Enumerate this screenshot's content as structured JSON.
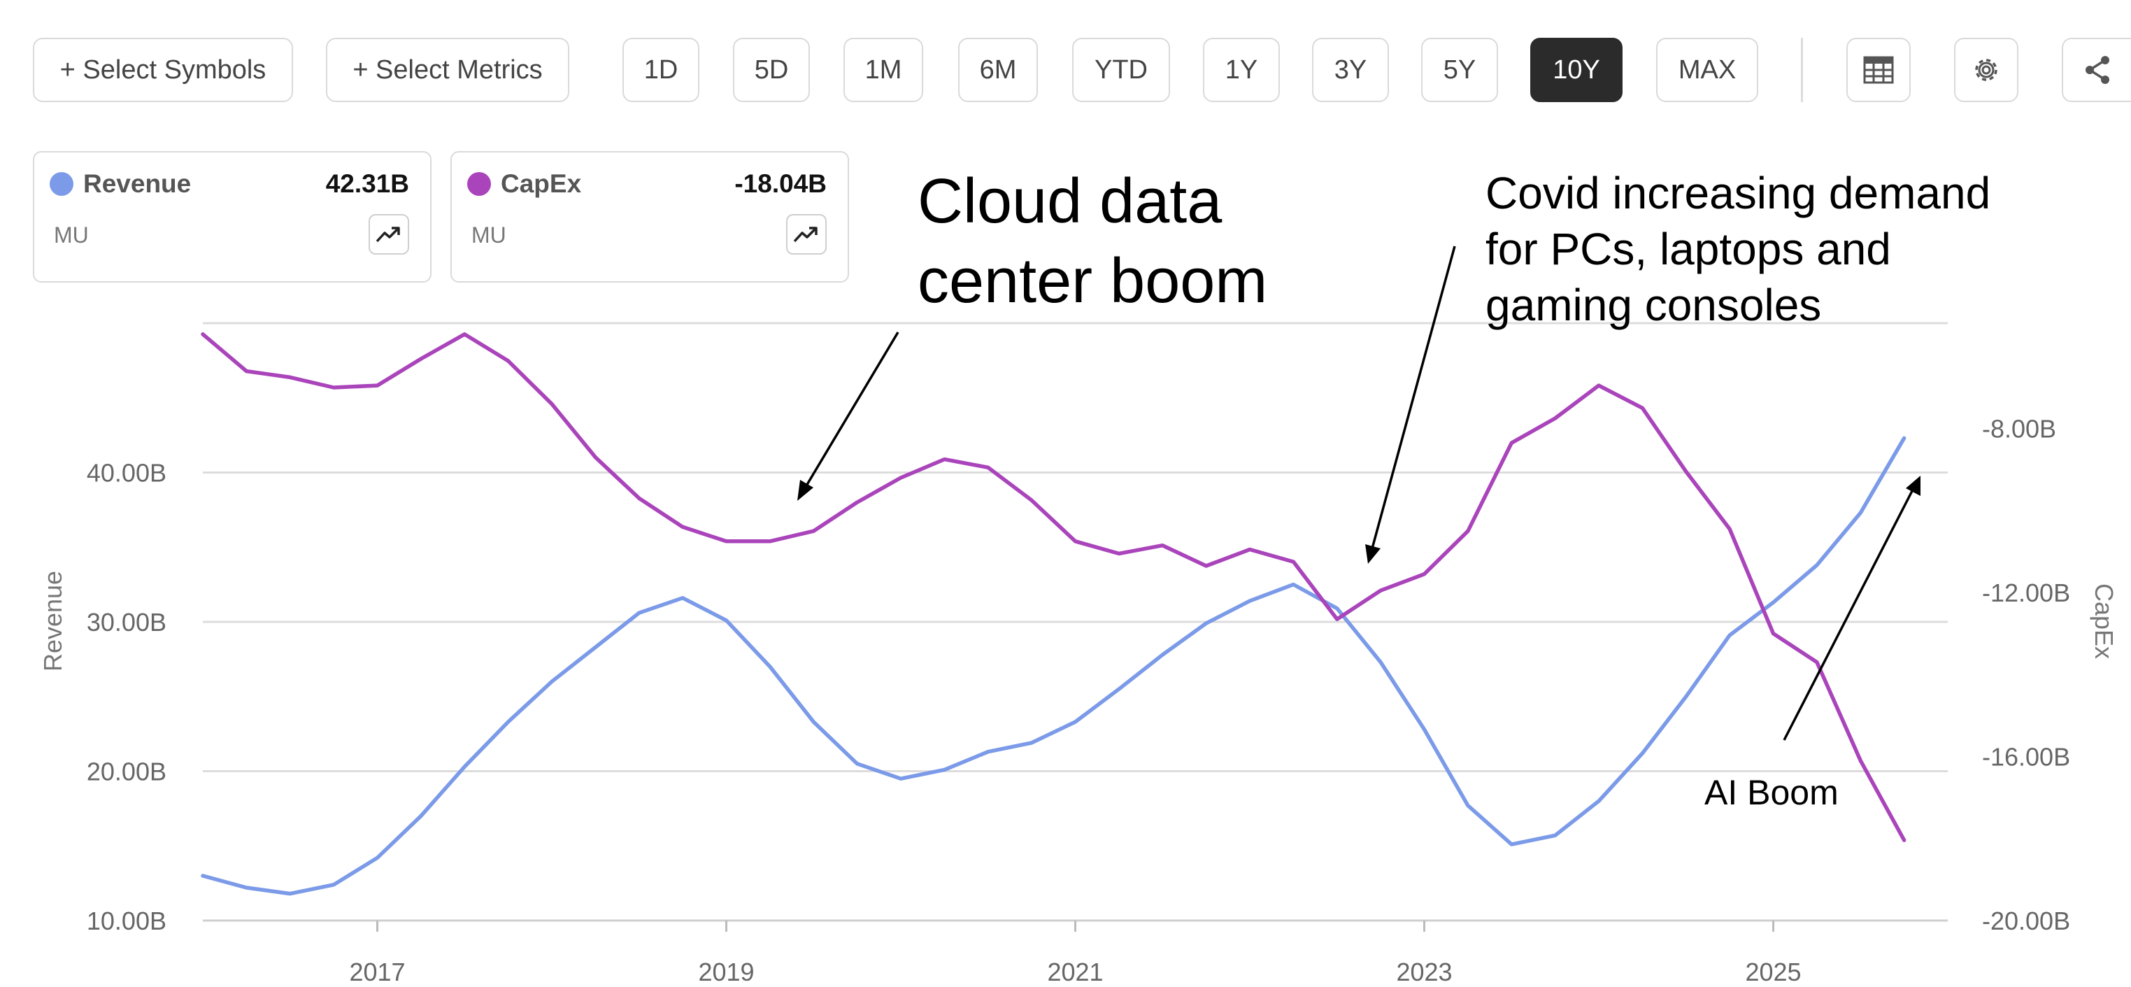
{
  "toolbar": {
    "select_symbols": "+ Select Symbols",
    "select_metrics": "+ Select Metrics",
    "ranges": [
      "1D",
      "5D",
      "1M",
      "6M",
      "YTD",
      "1Y",
      "3Y",
      "5Y",
      "10Y",
      "MAX"
    ],
    "active_range": "10Y",
    "icons": [
      "table-icon",
      "gear-icon",
      "share-icon"
    ]
  },
  "legend": {
    "revenue": {
      "label": "Revenue",
      "value": "42.31B",
      "symbol": "MU",
      "color": "#7b9ae8"
    },
    "capex": {
      "label": "CapEx",
      "value": "-18.04B",
      "symbol": "MU",
      "color": "#aa44bb"
    }
  },
  "annotations": {
    "cloud": [
      "Cloud data",
      "center boom"
    ],
    "covid": [
      "Covid increasing demand",
      "for PCs, laptops and",
      "gaming consoles"
    ],
    "ai": "AI Boom"
  },
  "chart_data": {
    "type": "line",
    "xlabel": "",
    "x_ticks": [
      "2017",
      "2019",
      "2021",
      "2023",
      "2025"
    ],
    "x_range": [
      2016.0,
      2026.0
    ],
    "left_axis": {
      "label": "Revenue",
      "ticks": [
        "10.00B",
        "20.00B",
        "30.00B",
        "40.00B"
      ],
      "range": [
        10,
        50
      ]
    },
    "right_axis": {
      "label": "CapEx",
      "ticks": [
        "-20.00B",
        "-16.00B",
        "-12.00B",
        "-8.00B"
      ],
      "range": [
        -20,
        -5.43
      ]
    },
    "grid": true,
    "series": [
      {
        "name": "Revenue",
        "axis": "left",
        "color": "#7b9ae8",
        "unit": "B",
        "x": [
          2016.0,
          2016.25,
          2016.5,
          2016.75,
          2017.0,
          2017.25,
          2017.5,
          2017.75,
          2018.0,
          2018.25,
          2018.5,
          2018.75,
          2019.0,
          2019.25,
          2019.5,
          2019.75,
          2020.0,
          2020.25,
          2020.5,
          2020.75,
          2021.0,
          2021.25,
          2021.5,
          2021.75,
          2022.0,
          2022.25,
          2022.5,
          2022.75,
          2023.0,
          2023.25,
          2023.5,
          2023.75,
          2024.0,
          2024.25,
          2024.5,
          2024.75,
          2025.0,
          2025.25,
          2025.5,
          2025.75
        ],
        "values": [
          13.0,
          12.2,
          11.8,
          12.4,
          14.2,
          17.0,
          20.3,
          23.3,
          26.0,
          28.3,
          30.6,
          31.6,
          30.1,
          27.0,
          23.3,
          20.5,
          19.5,
          20.1,
          21.3,
          21.9,
          23.3,
          25.5,
          27.8,
          29.9,
          31.4,
          32.5,
          30.9,
          27.3,
          22.8,
          17.7,
          15.1,
          15.7,
          18.0,
          21.2,
          25.0,
          29.1,
          31.3,
          33.8,
          37.3,
          42.3
        ]
      },
      {
        "name": "CapEx",
        "axis": "right",
        "color": "#aa44bb",
        "unit": "B",
        "x": [
          2016.0,
          2016.25,
          2016.5,
          2016.75,
          2017.0,
          2017.25,
          2017.5,
          2017.75,
          2018.0,
          2018.25,
          2018.5,
          2018.75,
          2019.0,
          2019.25,
          2019.5,
          2019.75,
          2020.0,
          2020.25,
          2020.5,
          2020.75,
          2021.0,
          2021.25,
          2021.5,
          2021.75,
          2022.0,
          2022.25,
          2022.5,
          2022.75,
          2023.0,
          2023.25,
          2023.5,
          2023.75,
          2024.0,
          2024.25,
          2024.5,
          2024.75,
          2025.0,
          2025.25,
          2025.5,
          2025.75
        ],
        "values": [
          -5.7,
          -6.6,
          -6.75,
          -7.0,
          -6.95,
          -6.3,
          -5.7,
          -6.35,
          -7.4,
          -8.7,
          -9.7,
          -10.4,
          -10.75,
          -10.75,
          -10.5,
          -9.8,
          -9.2,
          -8.75,
          -8.95,
          -9.75,
          -10.75,
          -11.05,
          -10.85,
          -11.35,
          -10.95,
          -11.25,
          -12.65,
          -11.95,
          -11.55,
          -10.5,
          -8.35,
          -7.75,
          -6.95,
          -7.5,
          -9.05,
          -10.45,
          -13.0,
          -13.7,
          -16.1,
          -18.04
        ]
      }
    ]
  }
}
